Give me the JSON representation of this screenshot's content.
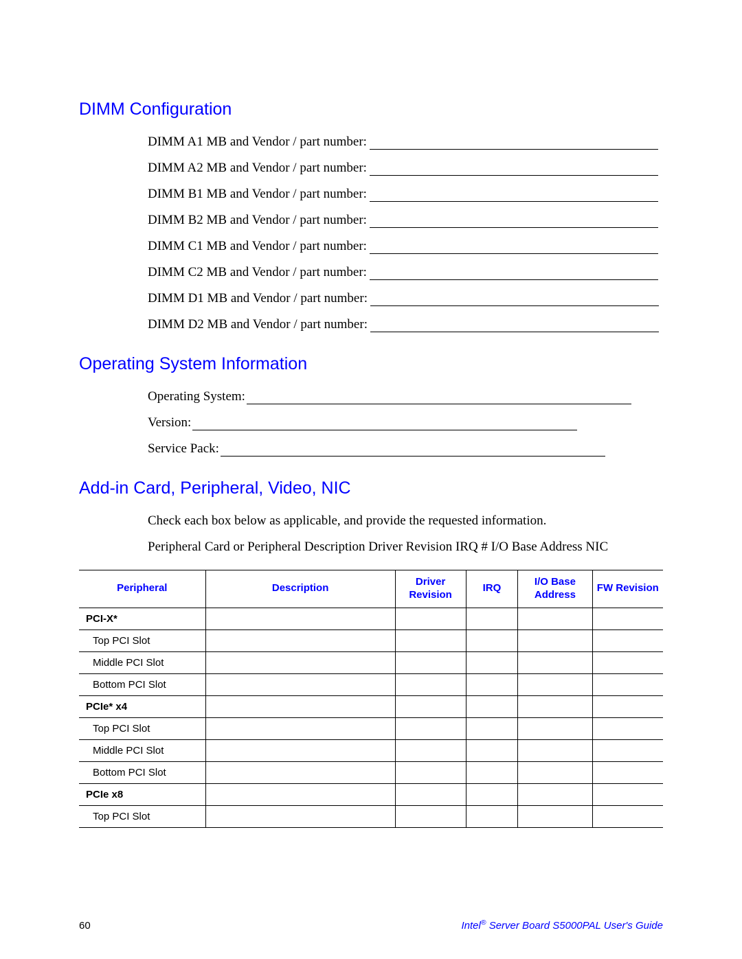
{
  "sections": {
    "dimm": {
      "heading": "DIMM Configuration",
      "lines": [
        "DIMM A1 MB and Vendor / part number:",
        "DIMM A2 MB and Vendor / part number:",
        "DIMM B1 MB and Vendor / part number:",
        "DIMM B2 MB and Vendor / part number:",
        "DIMM C1 MB and Vendor / part number:",
        "DIMM C2 MB and Vendor / part number:",
        "DIMM D1 MB and Vendor / part number:",
        "DIMM D2 MB and Vendor / part number:"
      ]
    },
    "os": {
      "heading": "Operating System Information",
      "lines": [
        "Operating System:",
        "Version:",
        "Service Pack:"
      ]
    },
    "addin": {
      "heading": "Add-in Card, Peripheral, Video, NIC",
      "instruction": "Check each box below as applicable, and provide the requested information.",
      "subtext": "Peripheral Card or Peripheral Description Driver Revision IRQ # I/O Base Address NIC",
      "table": {
        "headers": {
          "peripheral": "Peripheral",
          "description": "Description",
          "driver": "Driver Revision",
          "irq": "IRQ",
          "iobase": "I/O Base Address",
          "fw": "FW Revision"
        },
        "rows": [
          {
            "label": "PCI-X*",
            "bold": true
          },
          {
            "label": "Top PCI Slot",
            "bold": false
          },
          {
            "label": "Middle PCI Slot",
            "bold": false
          },
          {
            "label": "Bottom PCI Slot",
            "bold": false
          },
          {
            "label": "PCIe* x4",
            "bold": true
          },
          {
            "label": "Top PCI Slot",
            "bold": false
          },
          {
            "label": "Middle PCI Slot",
            "bold": false
          },
          {
            "label": "Bottom PCI Slot",
            "bold": false
          },
          {
            "label": "PCIe x8",
            "bold": true
          },
          {
            "label": "Top PCI Slot",
            "bold": false
          }
        ]
      }
    }
  },
  "footer": {
    "page": "60",
    "brand": "Intel",
    "guide": " Server Board S5000PAL User's Guide"
  },
  "colors": {
    "heading_blue": "#0000ff",
    "text_black": "#000000",
    "background": "#ffffff",
    "rule": "#000000"
  },
  "typography": {
    "heading_font": "Arial",
    "heading_size_pt": 19,
    "body_font": "Times New Roman",
    "body_size_pt": 14,
    "table_font": "Arial",
    "table_size_pt": 11
  }
}
